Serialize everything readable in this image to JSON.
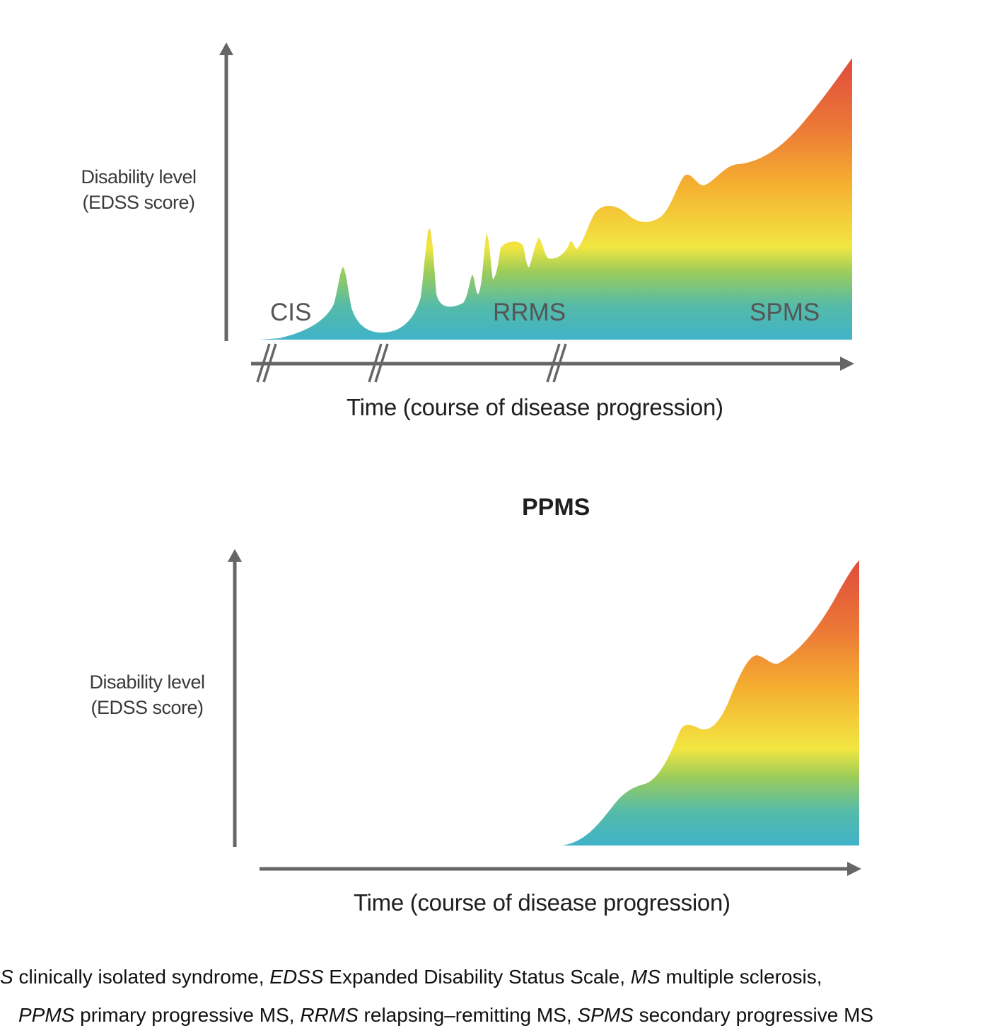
{
  "top_diagram": {
    "y_label_line1": "Disability level",
    "y_label_line2": "(EDSS score)",
    "x_label": "Time (course of disease progression)",
    "phases": [
      "CIS",
      "RRMS",
      "SPMS"
    ]
  },
  "bottom_diagram": {
    "title": "PPMS",
    "y_label_line1": "Disability level",
    "y_label_line2": "(EDSS score)",
    "x_label": "Time (course of disease progression)"
  },
  "caption": {
    "line1": [
      {
        "abbr": "S",
        "text": " clinically isolated syndrome, "
      },
      {
        "abbr": "EDSS",
        "text": " Expanded Disability Status Scale, "
      },
      {
        "abbr": "MS",
        "text": " multiple sclerosis,"
      }
    ],
    "line2": [
      {
        "abbr": "PPMS",
        "text": " primary progressive MS, "
      },
      {
        "abbr": "RRMS",
        "text": " relapsing–remitting MS, "
      },
      {
        "abbr": "SPMS",
        "text": " secondary progressive MS"
      }
    ]
  },
  "colors": {
    "axis": "#666666",
    "gradient_bottom": "#3fb3c9",
    "gradient_mid": "#f2e641",
    "gradient_top": "#e04a3c"
  }
}
